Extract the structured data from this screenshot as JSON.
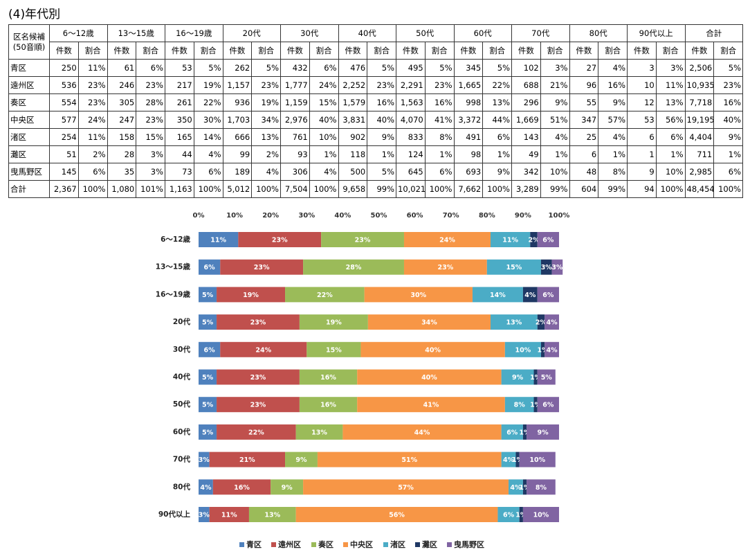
{
  "header": {
    "title": "(4)年代別"
  },
  "table": {
    "corner": [
      "区名候補",
      "(50音順)"
    ],
    "groups": [
      "6〜12歳",
      "13〜15歳",
      "16〜19歳",
      "20代",
      "30代",
      "40代",
      "50代",
      "60代",
      "70代",
      "80代",
      "90代以上",
      "合計"
    ],
    "subheaders": [
      "件数",
      "割合"
    ],
    "rows": [
      [
        "青区",
        "250",
        "11%",
        "61",
        "6%",
        "53",
        "5%",
        "262",
        "5%",
        "432",
        "6%",
        "476",
        "5%",
        "495",
        "5%",
        "345",
        "5%",
        "102",
        "3%",
        "27",
        "4%",
        "3",
        "3%",
        "2,506",
        "5%"
      ],
      [
        "遠州区",
        "536",
        "23%",
        "246",
        "23%",
        "217",
        "19%",
        "1,157",
        "23%",
        "1,777",
        "24%",
        "2,252",
        "23%",
        "2,291",
        "23%",
        "1,665",
        "22%",
        "688",
        "21%",
        "96",
        "16%",
        "10",
        "11%",
        "10,935",
        "23%"
      ],
      [
        "奏区",
        "554",
        "23%",
        "305",
        "28%",
        "261",
        "22%",
        "936",
        "19%",
        "1,159",
        "15%",
        "1,579",
        "16%",
        "1,563",
        "16%",
        "998",
        "13%",
        "296",
        "9%",
        "55",
        "9%",
        "12",
        "13%",
        "7,718",
        "16%"
      ],
      [
        "中央区",
        "577",
        "24%",
        "247",
        "23%",
        "350",
        "30%",
        "1,703",
        "34%",
        "2,976",
        "40%",
        "3,831",
        "40%",
        "4,070",
        "41%",
        "3,372",
        "44%",
        "1,669",
        "51%",
        "347",
        "57%",
        "53",
        "56%",
        "19,195",
        "40%"
      ],
      [
        "渚区",
        "254",
        "11%",
        "158",
        "15%",
        "165",
        "14%",
        "666",
        "13%",
        "761",
        "10%",
        "902",
        "9%",
        "833",
        "8%",
        "491",
        "6%",
        "143",
        "4%",
        "25",
        "4%",
        "6",
        "6%",
        "4,404",
        "9%"
      ],
      [
        "灘区",
        "51",
        "2%",
        "28",
        "3%",
        "44",
        "4%",
        "99",
        "2%",
        "93",
        "1%",
        "118",
        "1%",
        "124",
        "1%",
        "98",
        "1%",
        "49",
        "1%",
        "6",
        "1%",
        "1",
        "1%",
        "711",
        "1%"
      ],
      [
        "曳馬野区",
        "145",
        "6%",
        "35",
        "3%",
        "73",
        "6%",
        "189",
        "4%",
        "306",
        "4%",
        "500",
        "5%",
        "645",
        "6%",
        "693",
        "9%",
        "342",
        "10%",
        "48",
        "8%",
        "9",
        "10%",
        "2,985",
        "6%"
      ],
      [
        "合計",
        "2,367",
        "100%",
        "1,080",
        "101%",
        "1,163",
        "100%",
        "5,012",
        "100%",
        "7,504",
        "100%",
        "9,658",
        "99%",
        "10,021",
        "100%",
        "7,662",
        "100%",
        "3,289",
        "99%",
        "604",
        "99%",
        "94",
        "100%",
        "48,454",
        "100%"
      ]
    ]
  },
  "chart_data": {
    "type": "stacked-barh",
    "categories": [
      "6〜12歳",
      "13〜15歳",
      "16〜19歳",
      "20代",
      "30代",
      "40代",
      "50代",
      "60代",
      "70代",
      "80代",
      "90代以上"
    ],
    "xlim": [
      0,
      100
    ],
    "xticks": [
      {
        "value": 0,
        "label": "0%"
      },
      {
        "value": 10,
        "label": "10%"
      },
      {
        "value": 20,
        "label": "20%"
      },
      {
        "value": 30,
        "label": "30%"
      },
      {
        "value": 40,
        "label": "40%"
      },
      {
        "value": 50,
        "label": "50%"
      },
      {
        "value": 60,
        "label": "60%"
      },
      {
        "value": 70,
        "label": "70%"
      },
      {
        "value": 80,
        "label": "80%"
      },
      {
        "value": 90,
        "label": "90%"
      },
      {
        "value": 100,
        "label": "100%"
      }
    ],
    "grid": false,
    "legend": "bottom",
    "series": [
      {
        "name": "青区",
        "color": "#4f81bd",
        "values": [
          11,
          6,
          5,
          5,
          6,
          5,
          5,
          5,
          3,
          4,
          3
        ],
        "value_labels": [
          "11%",
          "6%",
          "5%",
          "5%",
          "6%",
          "5%",
          "5%",
          "5%",
          "3%",
          "4%",
          "3%"
        ]
      },
      {
        "name": "遠州区",
        "color": "#c0504d",
        "values": [
          23,
          23,
          19,
          23,
          24,
          23,
          23,
          22,
          21,
          16,
          11
        ],
        "value_labels": [
          "23%",
          "23%",
          "19%",
          "23%",
          "24%",
          "23%",
          "23%",
          "22%",
          "21%",
          "16%",
          "11%"
        ]
      },
      {
        "name": "奏区",
        "color": "#9bbb59",
        "values": [
          23,
          28,
          22,
          19,
          15,
          16,
          16,
          13,
          9,
          9,
          13
        ],
        "value_labels": [
          "23%",
          "28%",
          "22%",
          "19%",
          "15%",
          "16%",
          "16%",
          "13%",
          "9%",
          "9%",
          "13%"
        ]
      },
      {
        "name": "中央区",
        "color": "#f79646",
        "values": [
          24,
          23,
          30,
          34,
          40,
          40,
          41,
          44,
          51,
          57,
          56
        ],
        "value_labels": [
          "24%",
          "23%",
          "30%",
          "34%",
          "40%",
          "40%",
          "41%",
          "44%",
          "51%",
          "57%",
          "56%"
        ]
      },
      {
        "name": "渚区",
        "color": "#4bacc6",
        "values": [
          11,
          15,
          14,
          13,
          10,
          9,
          8,
          6,
          4,
          4,
          6
        ],
        "value_labels": [
          "11%",
          "15%",
          "14%",
          "13%",
          "10%",
          "9%",
          "8%",
          "6%",
          "4%",
          "4%",
          "6%"
        ]
      },
      {
        "name": "灘区",
        "color": "#1f3864",
        "values": [
          2,
          3,
          4,
          2,
          1,
          1,
          1,
          1,
          1,
          1,
          1
        ],
        "value_labels": [
          "2%",
          "3%",
          "4%",
          "2%",
          "1%",
          "1%",
          "1%",
          "1%",
          "1%",
          "1%",
          "1%"
        ]
      },
      {
        "name": "曳馬野区",
        "color": "#8064a2",
        "values": [
          6,
          3,
          6,
          4,
          4,
          5,
          6,
          9,
          10,
          8,
          10
        ],
        "value_labels": [
          "6%",
          "3%",
          "6%",
          "4%",
          "4%",
          "5%",
          "6%",
          "9%",
          "10%",
          "8%",
          "10%"
        ]
      }
    ]
  }
}
